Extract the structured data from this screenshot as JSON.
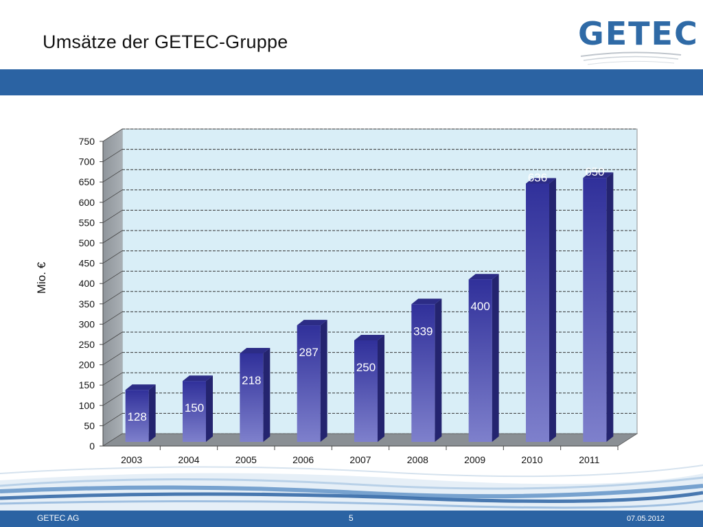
{
  "slide": {
    "title": "Umsätze der GETEC-Gruppe",
    "logo_text": "GETEC"
  },
  "footer": {
    "company": "GETEC AG",
    "page_number": "5",
    "date": "07.05.2012"
  },
  "colors": {
    "band": "#2b63a3",
    "bar_front": "#3a3a9e",
    "bar_front_light": "#7a7cc8",
    "bar_side": "#252576",
    "bar_top": "#2d2d88",
    "plot_bg": "#d9eef7",
    "wall": "#9aa0a6",
    "floor": "#8a8f94"
  },
  "chart_data": {
    "type": "bar",
    "categories": [
      "2003",
      "2004",
      "2005",
      "2006",
      "2007",
      "2008",
      "2009",
      "2010",
      "2011"
    ],
    "values": [
      128,
      150,
      218,
      287,
      250,
      339,
      400,
      636,
      650
    ],
    "data_labels": [
      "128",
      "150",
      "218",
      "287",
      "250",
      "339",
      "400",
      "636",
      "650"
    ],
    "ylabel": "Mio. €",
    "xlabel": "",
    "ylim": [
      0,
      750
    ],
    "yticks": [
      0,
      50,
      100,
      150,
      200,
      250,
      300,
      350,
      400,
      450,
      500,
      550,
      600,
      650,
      700,
      750
    ],
    "grid": true,
    "style": "3d"
  }
}
